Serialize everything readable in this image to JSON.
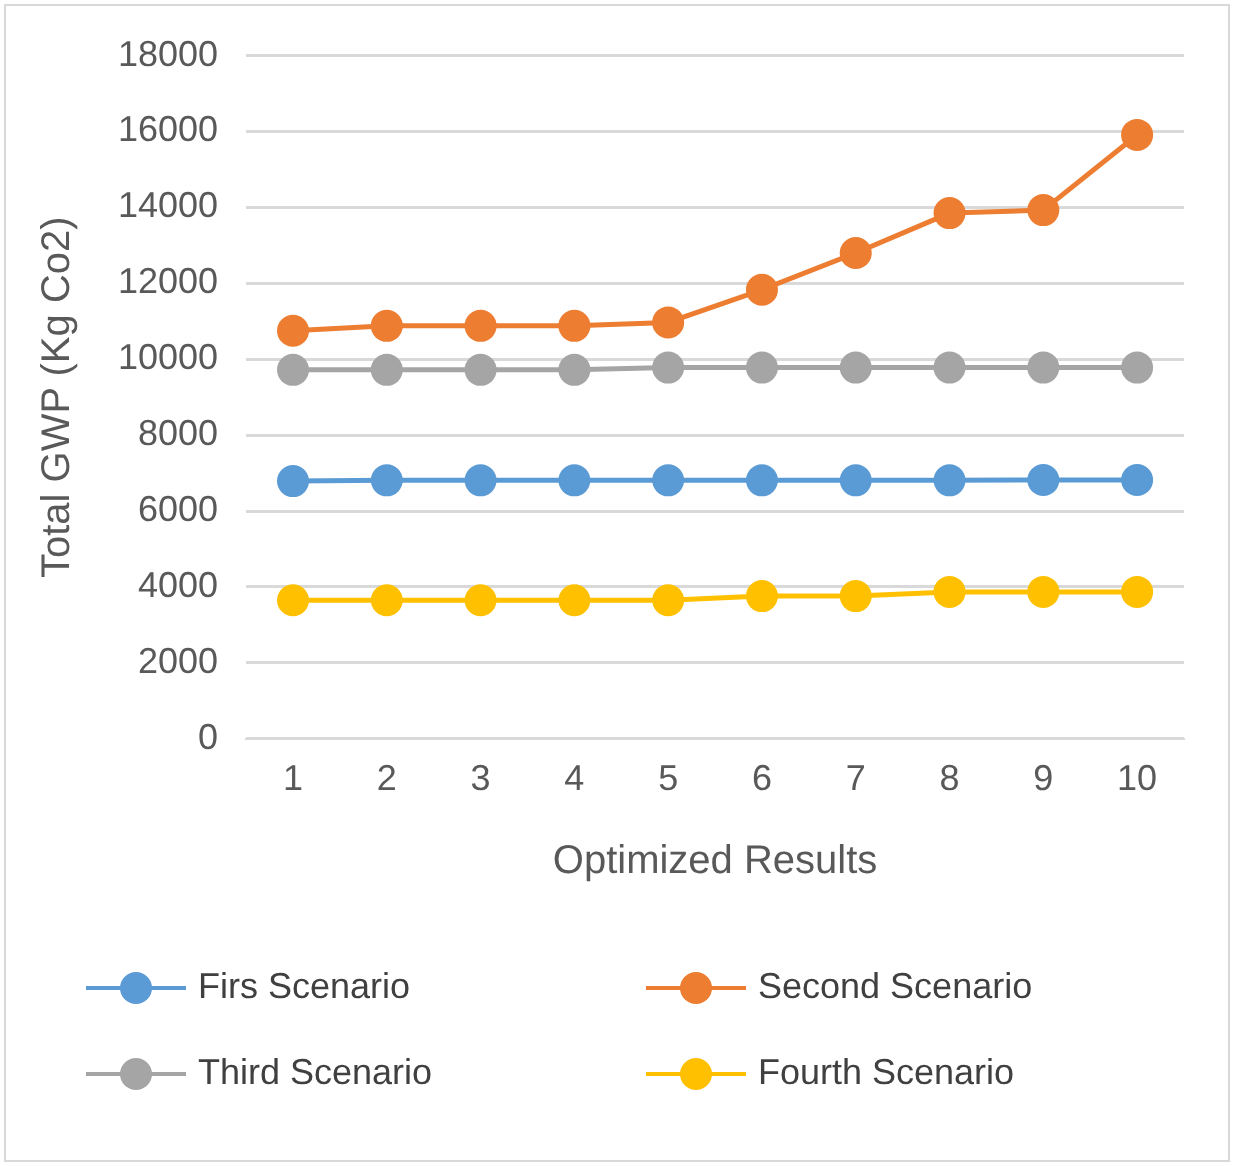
{
  "chart_data": {
    "type": "line",
    "xlabel": "Optimized Results",
    "ylabel": "Total GWP (Kg Co2)",
    "categories": [
      "1",
      "2",
      "3",
      "4",
      "5",
      "6",
      "7",
      "8",
      "9",
      "10"
    ],
    "series": [
      {
        "name": "Firs Scenario",
        "color": "#5b9bd5",
        "values": [
          6790,
          6810,
          6810,
          6810,
          6810,
          6810,
          6810,
          6810,
          6820,
          6820
        ]
      },
      {
        "name": "Second Scenario",
        "color": "#ed7d31",
        "values": [
          10750,
          10880,
          10880,
          10880,
          10970,
          11830,
          12800,
          13850,
          13930,
          15910
        ]
      },
      {
        "name": "Third Scenario",
        "color": "#a5a5a5",
        "values": [
          9720,
          9720,
          9720,
          9720,
          9780,
          9780,
          9780,
          9780,
          9780,
          9780
        ]
      },
      {
        "name": "Fourth Scenario",
        "color": "#ffc000",
        "values": [
          3650,
          3650,
          3650,
          3650,
          3650,
          3760,
          3760,
          3870,
          3870,
          3870
        ]
      }
    ],
    "ylim": [
      0,
      18000
    ],
    "yticks": [
      0,
      2000,
      4000,
      6000,
      8000,
      10000,
      12000,
      14000,
      16000,
      18000
    ],
    "grid": "y",
    "legend": "bottom",
    "marker": "circle",
    "line_style": "solid"
  }
}
